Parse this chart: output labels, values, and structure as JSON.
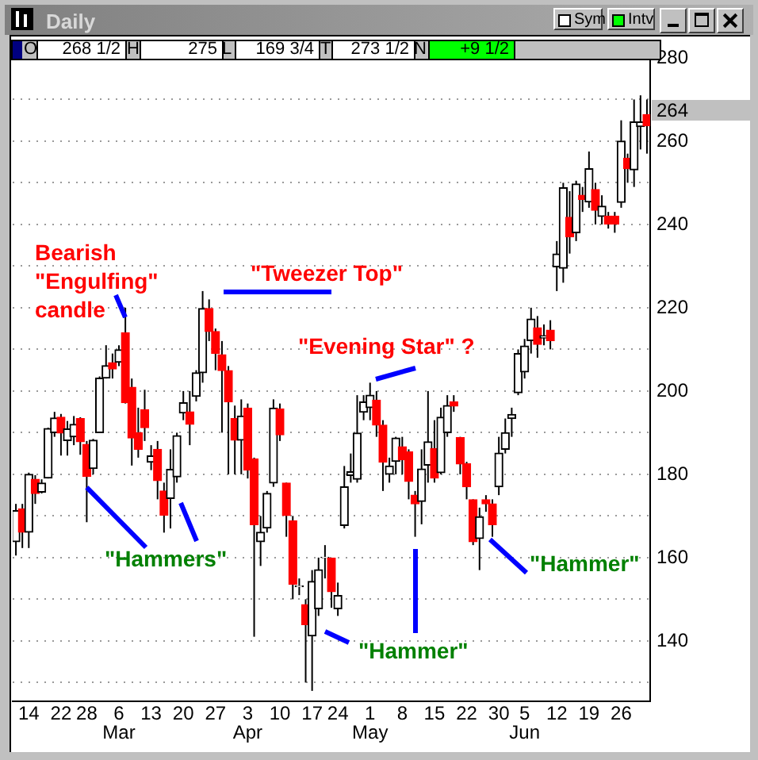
{
  "chart_data": {
    "type": "candlestick",
    "title": "Daily",
    "categories": [
      null,
      null,
      "14",
      null,
      null,
      null,
      null,
      "22",
      null,
      null,
      null,
      "28",
      null,
      null,
      null,
      null,
      "6\nMar",
      null,
      null,
      null,
      null,
      "13",
      null,
      null,
      null,
      null,
      "20",
      null,
      null,
      null,
      null,
      "27",
      null,
      null,
      null,
      null,
      "3\nApr",
      null,
      null,
      null,
      null,
      "10",
      null,
      null,
      null,
      null,
      "17",
      null,
      null,
      null,
      "24",
      null,
      null,
      null,
      null,
      "1\nMay",
      null,
      null,
      null,
      null,
      "8",
      null,
      null,
      null,
      null,
      "15",
      null,
      null,
      null,
      null,
      "22",
      null,
      null,
      null,
      null,
      "30",
      null,
      null,
      null,
      "5\nJun",
      null,
      null,
      null,
      null,
      "12",
      null,
      null,
      null,
      null,
      "19",
      null,
      null,
      null,
      null,
      "26",
      null,
      null,
      null,
      null
    ],
    "ohlc": [
      [
        163.8,
        172.9,
        160.5,
        171.3
      ],
      [
        171.7,
        172.9,
        162.3,
        166.1
      ],
      [
        166.1,
        180.4,
        162.3,
        180.0
      ],
      [
        178.8,
        179.8,
        172.9,
        175.4
      ],
      [
        175.7,
        178.8,
        175.4,
        177.9
      ],
      [
        179.1,
        191.2,
        179,
        191.0
      ],
      [
        190,
        195,
        189,
        193.5
      ],
      [
        193.7,
        194.5,
        184.5,
        189.9
      ],
      [
        188.1,
        192.8,
        184.5,
        190.9
      ],
      [
        189,
        194,
        187,
        192
      ],
      [
        193.4,
        193.7,
        184.7,
        187.8
      ],
      [
        187.2,
        188,
        168.5,
        179.5
      ],
      [
        181.4,
        188.5,
        180,
        188.2
      ],
      [
        190,
        203.5,
        190,
        203.1
      ],
      [
        203.1,
        211,
        203,
        206.1
      ],
      [
        206.8,
        209,
        203,
        205.3
      ],
      [
        206.9,
        211,
        206,
        209.9
      ],
      [
        214,
        220,
        197,
        197.2
      ],
      [
        200.9,
        203,
        182.1,
        188.7
      ],
      [
        190,
        196,
        184,
        186
      ],
      [
        195.5,
        200.3,
        188,
        191.2
      ],
      [
        182.9,
        187,
        181,
        184.4
      ],
      [
        186,
        188,
        174,
        178.5
      ],
      [
        176,
        178,
        166,
        170.2
      ],
      [
        174.2,
        186,
        167,
        181.2
      ],
      [
        179.4,
        190,
        178,
        189.3
      ],
      [
        194.7,
        200,
        193,
        197.2
      ],
      [
        195,
        200,
        187,
        192
      ],
      [
        198.7,
        205,
        197.5,
        204.4
      ],
      [
        204.4,
        224,
        202,
        219.8
      ],
      [
        219.8,
        222,
        212,
        214.3
      ],
      [
        214.3,
        215,
        205,
        209
      ],
      [
        208.7,
        212,
        190,
        204.9
      ],
      [
        204.9,
        206,
        180,
        197.4
      ],
      [
        193.4,
        196.5,
        180,
        188.2
      ],
      [
        188.2,
        198,
        180,
        194
      ],
      [
        195.9,
        197,
        179,
        181
      ],
      [
        183.7,
        184,
        141,
        167.9
      ],
      [
        163.8,
        170,
        158,
        166.1
      ],
      [
        167.1,
        176,
        166,
        175.4
      ],
      [
        177.9,
        198,
        177,
        195.9
      ],
      [
        195.7,
        197,
        188,
        189.5
      ],
      [
        177.9,
        178,
        165,
        170.1
      ],
      [
        168.8,
        170,
        150,
        153.6
      ],
      [
        153,
        155,
        151,
        153.2
      ],
      [
        148.7,
        150,
        130,
        143.9
      ],
      [
        141.2,
        157,
        128,
        154.3
      ],
      [
        147.7,
        160,
        146,
        157.1
      ],
      [
        160,
        163,
        155,
        160.1
      ],
      [
        159.9,
        160,
        148,
        151.8
      ],
      [
        147.7,
        154,
        146,
        150.9
      ],
      [
        167.7,
        182,
        167,
        177
      ],
      [
        179.7,
        185,
        178,
        180.6
      ],
      [
        178.8,
        199,
        178,
        189.9
      ],
      [
        194.9,
        199,
        193,
        197.4
      ],
      [
        196,
        202,
        193,
        199
      ],
      [
        197.8,
        200,
        189,
        191.8
      ],
      [
        191.8,
        193,
        176,
        182.9
      ],
      [
        180,
        184,
        178,
        182
      ],
      [
        183.1,
        189,
        180,
        188.7
      ],
      [
        186.6,
        189,
        180,
        183.5
      ],
      [
        185.4,
        186,
        174,
        178.3
      ],
      [
        175,
        176,
        165,
        172.9
      ],
      [
        173.5,
        186,
        168,
        181.3
      ],
      [
        182.2,
        200,
        178,
        187.8
      ],
      [
        186.2,
        193,
        178,
        179.1
      ],
      [
        180.4,
        196,
        180,
        193.7
      ],
      [
        190,
        199,
        189,
        196.5
      ],
      [
        197.4,
        199,
        195,
        196.4
      ],
      [
        188.8,
        189,
        180,
        182.5
      ],
      [
        182.5,
        183,
        174,
        177
      ],
      [
        173.9,
        174,
        163,
        163.8
      ],
      [
        164.6,
        172,
        157,
        169.8
      ],
      [
        173.9,
        175,
        171,
        172.9
      ],
      [
        172.9,
        174,
        165,
        167.9
      ],
      [
        177,
        189,
        175,
        185.1
      ],
      [
        186,
        193.4,
        185,
        190
      ],
      [
        193.4,
        196,
        189,
        194.4
      ],
      [
        199.6,
        210,
        199,
        209
      ],
      [
        204.6,
        212.5,
        203,
        210.8
      ],
      [
        212.1,
        220,
        209,
        217.3
      ],
      [
        215.2,
        218,
        208,
        211.2
      ],
      [
        212.7,
        216,
        211,
        213.3
      ],
      [
        214.6,
        217,
        210,
        212.1
      ],
      [
        229.8,
        236,
        224,
        232.9
      ],
      [
        229.5,
        250,
        226,
        248.8
      ],
      [
        241.7,
        248,
        233,
        237
      ],
      [
        238,
        250.5,
        236,
        249.7
      ],
      [
        247,
        249,
        243,
        246
      ],
      [
        245.4,
        257.5,
        244,
        253.4
      ],
      [
        248.4,
        250,
        240,
        243.4
      ],
      [
        241.9,
        247,
        240,
        244.4
      ],
      [
        242,
        243,
        239,
        240.1
      ],
      [
        242,
        243,
        238,
        240.1
      ],
      [
        245.3,
        265,
        244,
        260
      ],
      [
        255.9,
        257,
        250,
        253.4
      ],
      [
        253.1,
        270,
        249,
        264.6
      ],
      [
        263.5,
        271,
        258,
        264.6
      ],
      [
        266.4,
        270,
        257,
        263.7
      ]
    ],
    "colors": [
      "#000000",
      "#ff0000",
      "#000000",
      "#ff0000",
      "#000000",
      "#000000",
      "#000000",
      "#ff0000",
      "#000000",
      "#000000",
      "#ff0000",
      "#ff0000",
      "#000000",
      "#000000",
      "#000000",
      "#ff0000",
      "#000000",
      "#ff0000",
      "#ff0000",
      "#ff0000",
      "#ff0000",
      "#000000",
      "#ff0000",
      "#ff0000",
      "#000000",
      "#000000",
      "#000000",
      "#ff0000",
      "#000000",
      "#000000",
      "#ff0000",
      "#ff0000",
      "#ff0000",
      "#ff0000",
      "#ff0000",
      "#000000",
      "#ff0000",
      "#ff0000",
      "#000000",
      "#000000",
      "#000000",
      "#ff0000",
      "#ff0000",
      "#ff0000",
      "#000000",
      "#ff0000",
      "#000000",
      "#000000",
      "#000000",
      "#ff0000",
      "#000000",
      "#000000",
      "#000000",
      "#000000",
      "#000000",
      "#000000",
      "#ff0000",
      "#ff0000",
      "#000000",
      "#000000",
      "#ff0000",
      "#ff0000",
      "#ff0000",
      "#000000",
      "#000000",
      "#ff0000",
      "#000000",
      "#000000",
      "#ff0000",
      "#ff0000",
      "#ff0000",
      "#ff0000",
      "#000000",
      "#ff0000",
      "#ff0000",
      "#000000",
      "#000000",
      "#000000",
      "#000000",
      "#000000",
      "#000000",
      "#ff0000",
      "#000000",
      "#ff0000",
      "#000000",
      "#000000",
      "#ff0000",
      "#000000",
      "#ff0000",
      "#000000",
      "#ff0000",
      "#000000",
      "#ff0000",
      "#ff0000",
      "#000000",
      "#ff0000",
      "#000000",
      "#000000",
      "#ff0000"
    ],
    "ylim": [
      125.5,
      282
    ],
    "yticks": [
      {
        "value": 130,
        "label": null
      },
      140,
      {
        "value": 150,
        "label": null
      },
      160,
      {
        "value": 170,
        "label": null
      },
      180,
      {
        "value": 190,
        "label": null
      },
      200,
      {
        "value": 210,
        "label": null
      },
      220,
      {
        "value": 230,
        "label": null
      },
      240,
      {
        "value": 250,
        "label": null
      },
      260,
      {
        "value": 270,
        "label": null
      },
      280
    ],
    "grid": "y",
    "annotations": [
      "O",
      "268 1/2",
      "H",
      "275",
      "L",
      "169 3/4",
      "T",
      "273 1/2",
      "N",
      "+9 1/2",
      "Sym",
      "Intv",
      "Bearish\n\"Engulfing\"\ncandle",
      "\"Tweezer Top\"",
      "\"Evening Star\" ?",
      {
        "text": "\"Hammers\"",
        "x": "28",
        "y": 178
      },
      "\"Hammer\"",
      "\"Hammer\"",
      "264"
    ]
  }
}
